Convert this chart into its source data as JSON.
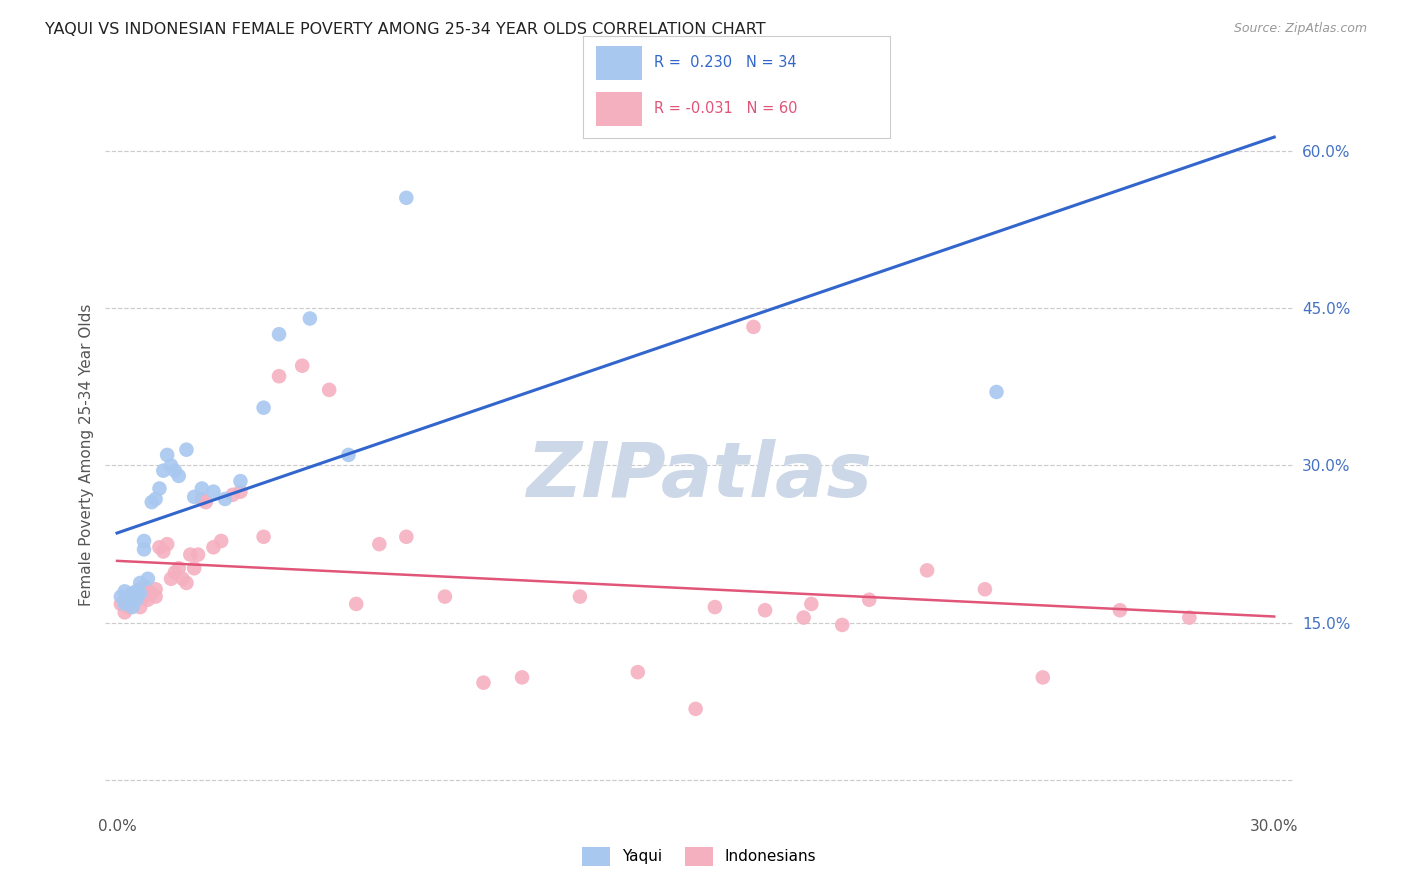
{
  "title": "YAQUI VS INDONESIAN FEMALE POVERTY AMONG 25-34 YEAR OLDS CORRELATION CHART",
  "source": "Source: ZipAtlas.com",
  "ylabel": "Female Poverty Among 25-34 Year Olds",
  "xlim": [
    -0.003,
    0.305
  ],
  "ylim": [
    -0.03,
    0.65
  ],
  "yaqui_color": "#a8c8f0",
  "indonesian_color": "#f5b0c0",
  "yaqui_line_color": "#3366cc",
  "indonesian_line_color": "#e05578",
  "watermark_color": "#ccd8e8",
  "yaqui_x": [
    0.001,
    0.002,
    0.002,
    0.003,
    0.003,
    0.004,
    0.004,
    0.005,
    0.005,
    0.006,
    0.006,
    0.007,
    0.007,
    0.008,
    0.009,
    0.01,
    0.011,
    0.012,
    0.013,
    0.014,
    0.015,
    0.016,
    0.018,
    0.02,
    0.022,
    0.025,
    0.028,
    0.032,
    0.038,
    0.042,
    0.05,
    0.06,
    0.075,
    0.228
  ],
  "yaqui_y": [
    0.175,
    0.168,
    0.18,
    0.17,
    0.175,
    0.165,
    0.178,
    0.172,
    0.18,
    0.188,
    0.178,
    0.22,
    0.228,
    0.192,
    0.265,
    0.268,
    0.278,
    0.295,
    0.31,
    0.3,
    0.295,
    0.29,
    0.315,
    0.27,
    0.278,
    0.275,
    0.268,
    0.285,
    0.355,
    0.425,
    0.44,
    0.31,
    0.555,
    0.37
  ],
  "indonesian_x": [
    0.001,
    0.002,
    0.002,
    0.003,
    0.003,
    0.004,
    0.004,
    0.005,
    0.005,
    0.006,
    0.006,
    0.007,
    0.007,
    0.008,
    0.008,
    0.009,
    0.01,
    0.01,
    0.011,
    0.012,
    0.013,
    0.014,
    0.015,
    0.016,
    0.017,
    0.018,
    0.019,
    0.02,
    0.021,
    0.022,
    0.023,
    0.025,
    0.027,
    0.03,
    0.032,
    0.038,
    0.042,
    0.048,
    0.055,
    0.062,
    0.068,
    0.075,
    0.085,
    0.095,
    0.105,
    0.12,
    0.135,
    0.15,
    0.165,
    0.18,
    0.195,
    0.21,
    0.225,
    0.24,
    0.155,
    0.168,
    0.178,
    0.188,
    0.26,
    0.278
  ],
  "indonesian_y": [
    0.168,
    0.16,
    0.172,
    0.165,
    0.17,
    0.168,
    0.178,
    0.172,
    0.178,
    0.165,
    0.182,
    0.175,
    0.185,
    0.172,
    0.18,
    0.178,
    0.175,
    0.182,
    0.222,
    0.218,
    0.225,
    0.192,
    0.198,
    0.202,
    0.192,
    0.188,
    0.215,
    0.202,
    0.215,
    0.268,
    0.265,
    0.222,
    0.228,
    0.272,
    0.275,
    0.232,
    0.385,
    0.395,
    0.372,
    0.168,
    0.225,
    0.232,
    0.175,
    0.093,
    0.098,
    0.175,
    0.103,
    0.068,
    0.432,
    0.168,
    0.172,
    0.2,
    0.182,
    0.098,
    0.165,
    0.162,
    0.155,
    0.148,
    0.162,
    0.155
  ]
}
